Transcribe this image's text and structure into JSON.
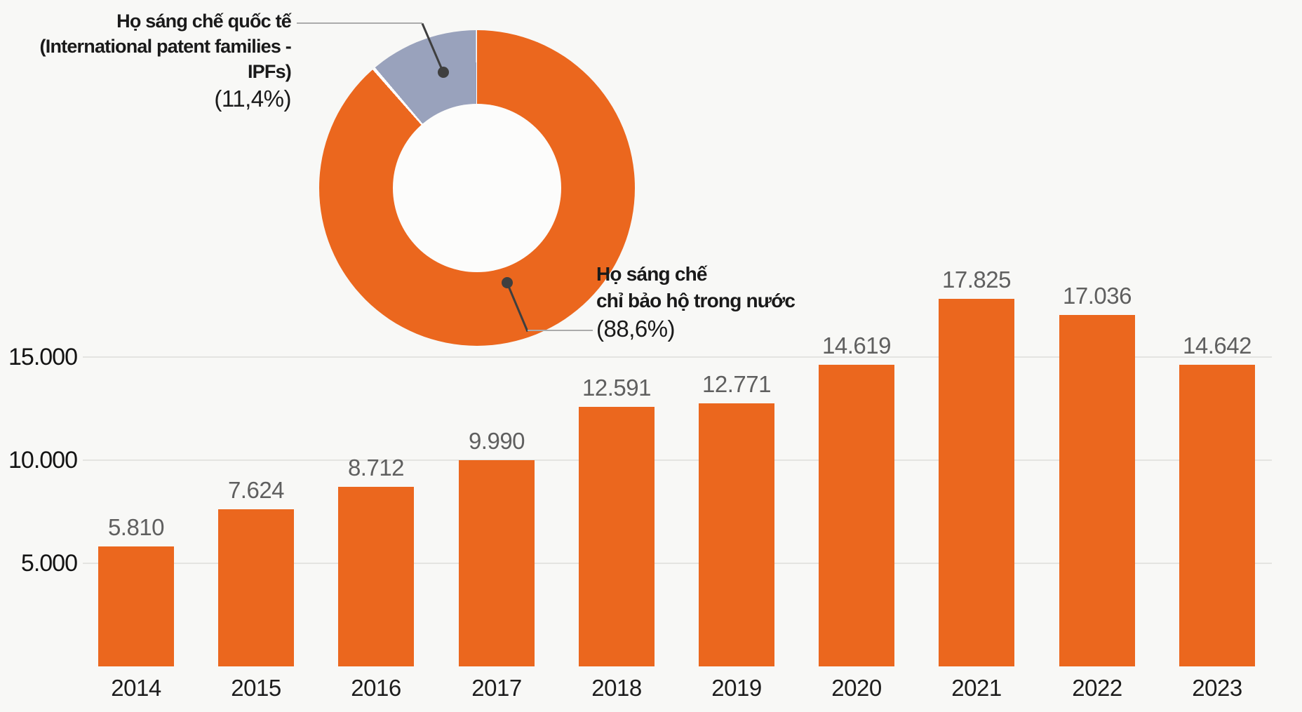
{
  "colors": {
    "orange": "#EB671E",
    "gray_blue": "#99A2BC",
    "background": "#F8F8F6",
    "grid": "#E4E4E1",
    "value_label": "#5F5F5F",
    "axis_label": "#141414",
    "leader_dark": "#3F3F3F",
    "leader_light": "#ABABAB",
    "donut_hole": "#FCFCFB"
  },
  "donut_labels": {
    "international": {
      "line1": "Họ sáng chế quốc tế",
      "line2": "(International patent families - IPFs)",
      "pct": "(11,4%)"
    },
    "domestic": {
      "line1": "Họ sáng chế",
      "line2": "chỉ bảo hộ trong nước",
      "pct": "(88,6%)"
    }
  },
  "chart_data": [
    {
      "type": "bar",
      "categories": [
        "2014",
        "2015",
        "2016",
        "2017",
        "2018",
        "2019",
        "2020",
        "2021",
        "2022",
        "2023"
      ],
      "values": [
        5810,
        7624,
        8712,
        9990,
        12591,
        12771,
        14619,
        17825,
        17036,
        14642
      ],
      "value_labels": [
        "5.810",
        "7.624",
        "8.712",
        "9.990",
        "12.591",
        "12.771",
        "14.619",
        "17.825",
        "17.036",
        "14.642"
      ],
      "title": "",
      "xlabel": "",
      "ylabel": "",
      "ylim": [
        0,
        18500
      ],
      "grid": true,
      "yticks": [
        {
          "label": "5.000",
          "value": 5000
        },
        {
          "label": "10.000",
          "value": 10000
        },
        {
          "label": "15.000",
          "value": 15000
        }
      ],
      "bar_color": "#EB671E"
    },
    {
      "type": "pie",
      "donut": true,
      "labels": [
        "Họ sáng chế chỉ bảo hộ trong nước",
        "Họ sáng chế quốc tế (International patent families - IPFs)"
      ],
      "values": [
        88.6,
        11.4
      ],
      "unit": "%",
      "colors": [
        "#EB671E",
        "#99A2BC"
      ],
      "legend_position": "callout-labels"
    }
  ]
}
